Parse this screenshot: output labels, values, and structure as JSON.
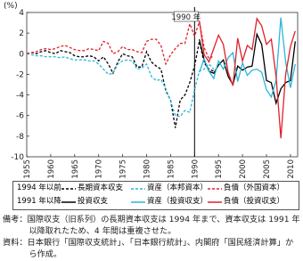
{
  "chart_data": {
    "type": "line",
    "y_label": "(%)",
    "x": [
      1955,
      1956,
      1957,
      1958,
      1959,
      1960,
      1961,
      1962,
      1963,
      1964,
      1965,
      1966,
      1967,
      1968,
      1969,
      1970,
      1971,
      1972,
      1973,
      1974,
      1975,
      1976,
      1977,
      1978,
      1979,
      1980,
      1981,
      1982,
      1983,
      1984,
      1985,
      1986,
      1987,
      1988,
      1989,
      1990,
      1991,
      1992,
      1993,
      1994,
      1995,
      1996,
      1997,
      1998,
      1999,
      2000,
      2001,
      2002,
      2003,
      2004,
      2005,
      2006,
      2007,
      2008,
      2009,
      2010,
      2011
    ],
    "xlim": [
      1955,
      2011.5
    ],
    "xticks": [
      1955,
      1960,
      1965,
      1970,
      1975,
      1980,
      1985,
      1990,
      1995,
      2000,
      2005,
      2010
    ],
    "ylim": [
      -10,
      4
    ],
    "yticks": [
      -10,
      -8,
      -6,
      -4,
      -2,
      0,
      2,
      4
    ],
    "annotation": {
      "x": 1990,
      "text": "1990 年"
    },
    "legend_groups": [
      "1994 年以前",
      "1991 年以降"
    ],
    "series": [
      {
        "name": "長期資本収支",
        "color": "#000000",
        "style": "dashed",
        "group": 0,
        "values": [
          0,
          0.1,
          0,
          0.2,
          0.3,
          0.1,
          0,
          0.3,
          0.2,
          0.1,
          -0.2,
          -0.3,
          -0.3,
          -0.2,
          -0.3,
          -0.7,
          -0.3,
          -1.0,
          -1.9,
          -0.8,
          0,
          -0.2,
          -0.3,
          -1.3,
          -1.3,
          0.2,
          -0.8,
          -1.2,
          -1.5,
          -3.6,
          -4.5,
          -7.2,
          -4.5,
          -4.0,
          -2.8,
          -1.2,
          1.2,
          -0.9,
          -1.5,
          -1.7,
          null,
          null,
          null,
          null,
          null,
          null,
          null,
          null,
          null,
          null,
          null,
          null,
          null,
          null,
          null,
          null,
          null
        ]
      },
      {
        "name": "資産（本邦資本）",
        "color": "#29b6d8",
        "style": "dashed",
        "group": 0,
        "values": [
          0,
          -0.1,
          -0.2,
          -0.2,
          -0.3,
          -0.3,
          -0.3,
          -0.4,
          -0.3,
          -0.5,
          -0.6,
          -0.6,
          -0.6,
          -0.7,
          -0.7,
          -1.0,
          -1.5,
          -2.0,
          -1.9,
          -1.0,
          -0.7,
          -0.6,
          -0.7,
          -1.5,
          -1.4,
          -1.0,
          -2.2,
          -2.6,
          -2.5,
          -3.4,
          -4.6,
          -6.0,
          -6.1,
          -5.5,
          -5.7,
          -3.5,
          -1.7,
          -1.5,
          -1.0,
          -1.5,
          null,
          null,
          null,
          null,
          null,
          null,
          null,
          null,
          null,
          null,
          null,
          null,
          null,
          null,
          null,
          null,
          null
        ]
      },
      {
        "name": "負債（外国資本）",
        "color": "#e0202c",
        "style": "dashed",
        "group": 0,
        "values": [
          0,
          0.1,
          0.2,
          0.4,
          0.5,
          0.4,
          0.5,
          0.7,
          0.8,
          0.6,
          0.4,
          0.3,
          0.3,
          0.5,
          0.4,
          0.3,
          1.2,
          1.0,
          0,
          0.2,
          0.7,
          0.4,
          0.4,
          0.2,
          0.1,
          1.2,
          1.4,
          1.4,
          0.8,
          -1.0,
          -0.1,
          0.5,
          1.0,
          1.0,
          2.9,
          1.7,
          3.1,
          0.6,
          -0.5,
          -0.2,
          null,
          null,
          null,
          null,
          null,
          null,
          null,
          null,
          null,
          null,
          null,
          null,
          null,
          null,
          null,
          null,
          null
        ]
      },
      {
        "name": "投資収支",
        "color": "#000000",
        "style": "solid",
        "group": 1,
        "values": [
          null,
          null,
          null,
          null,
          null,
          null,
          null,
          null,
          null,
          null,
          null,
          null,
          null,
          null,
          null,
          null,
          null,
          null,
          null,
          null,
          null,
          null,
          null,
          null,
          null,
          null,
          null,
          null,
          null,
          null,
          null,
          null,
          null,
          null,
          null,
          null,
          1.4,
          -0.6,
          -1.7,
          -1.9,
          -1.1,
          -0.6,
          -2.2,
          -3.0,
          -1.2,
          -1.6,
          -1.3,
          -1.2,
          1.9,
          0.9,
          -2.6,
          -2.8,
          -4.8,
          -3.4,
          -2.8,
          -2.6,
          1.2
        ]
      },
      {
        "name": "資産（投資収支）",
        "color": "#29b6d8",
        "style": "solid",
        "group": 1,
        "values": [
          null,
          null,
          null,
          null,
          null,
          null,
          null,
          null,
          null,
          null,
          null,
          null,
          null,
          null,
          null,
          null,
          null,
          null,
          null,
          null,
          null,
          null,
          null,
          null,
          null,
          null,
          null,
          null,
          null,
          null,
          null,
          null,
          null,
          null,
          null,
          null,
          -1.8,
          -0.5,
          -1.7,
          -2.4,
          -0.7,
          -1.5,
          -0.4,
          0.1,
          -2.7,
          -0.9,
          -2.1,
          -1.6,
          -1.5,
          -1.8,
          -3.5,
          -4.2,
          -2.6,
          3.5,
          -0.8,
          -3.3,
          -1.0
        ]
      },
      {
        "name": "負債（投資収支）",
        "color": "#e0202c",
        "style": "solid",
        "group": 1,
        "values": [
          null,
          null,
          null,
          null,
          null,
          null,
          null,
          null,
          null,
          null,
          null,
          null,
          null,
          null,
          null,
          null,
          null,
          null,
          null,
          null,
          null,
          null,
          null,
          null,
          null,
          null,
          null,
          null,
          null,
          null,
          null,
          null,
          null,
          null,
          null,
          null,
          3.2,
          -0.1,
          -0.8,
          0.5,
          1.8,
          0.9,
          -1.8,
          -3.1,
          1.5,
          -0.7,
          0.8,
          0.4,
          3.4,
          2.7,
          0.9,
          1.4,
          -2.2,
          -8.2,
          -2.0,
          0.7,
          2.2
        ]
      }
    ]
  },
  "notes": [
    "備考：国際収支（旧系列）の長期資本収支は 1994 年まで、資本収支は 1991 年以降取れたため、4 年間は重複させた。",
    "資料：日本銀行「国際収支統計」、「日本銀行統計」、内閣府「国民経済計算」から作成。"
  ]
}
